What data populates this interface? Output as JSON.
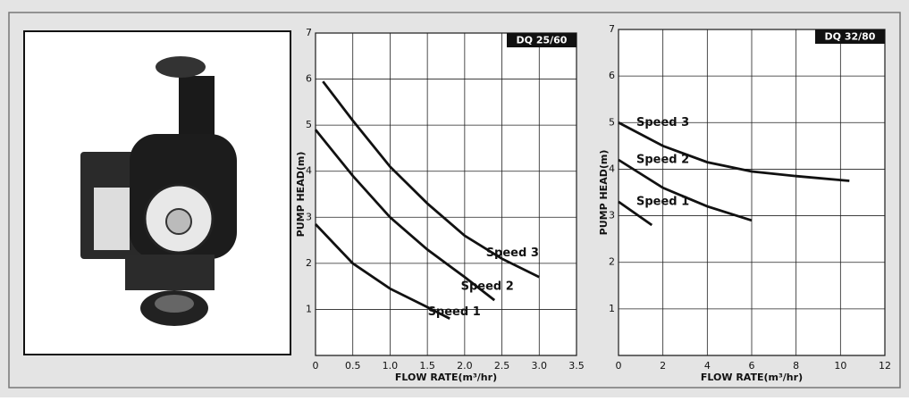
{
  "chart_data": [
    {
      "type": "line",
      "title": "DQ 25/60",
      "x_label": "FLOW RATE(m³/hr)",
      "y_label": "PUMP HEAD(m)",
      "xlim": [
        0,
        3.5
      ],
      "ylim": [
        0,
        7
      ],
      "xticks": [
        0,
        0.5,
        {
          "value": 1,
          "label": "1.0"
        },
        1.5,
        {
          "value": 2,
          "label": "2.0"
        },
        2.5,
        {
          "value": 3,
          "label": "3.0"
        },
        3.5
      ],
      "yticks": [
        1,
        2,
        3,
        4,
        5,
        6,
        7
      ],
      "grid": true,
      "series": [
        {
          "name": "Speed 3",
          "color": "#111111",
          "x": [
            0.1,
            0.5,
            1.0,
            1.5,
            2.0,
            2.5,
            3.0
          ],
          "values": [
            5.95,
            5.1,
            4.1,
            3.3,
            2.6,
            2.1,
            1.7
          ]
        },
        {
          "name": "Speed 2",
          "color": "#111111",
          "x": [
            0,
            0.5,
            1.0,
            1.5,
            2.0,
            2.4
          ],
          "values": [
            4.9,
            3.9,
            3.0,
            2.3,
            1.7,
            1.2
          ]
        },
        {
          "name": "Speed 1",
          "color": "#111111",
          "x": [
            0,
            0.5,
            1.0,
            1.5,
            1.8
          ],
          "values": [
            2.85,
            2.0,
            1.45,
            1.05,
            0.8
          ]
        }
      ]
    },
    {
      "type": "line",
      "title": "DQ 32/80",
      "x_label": "FLOW RATE(m³/hr)",
      "y_label": "PUMP HEAD(m)",
      "xlim": [
        0,
        12
      ],
      "ylim": [
        0,
        7
      ],
      "xticks": [
        0,
        2,
        4,
        6,
        8,
        10,
        12
      ],
      "yticks": [
        1,
        2,
        3,
        4,
        5,
        6,
        7
      ],
      "grid": true,
      "series": [
        {
          "name": "Speed 3",
          "color": "#111111",
          "x": [
            0,
            2,
            4,
            6,
            8,
            10.4
          ],
          "values": [
            5.0,
            4.5,
            4.15,
            3.95,
            3.85,
            3.75
          ]
        },
        {
          "name": "Speed 2",
          "color": "#111111",
          "x": [
            0,
            2,
            4,
            6
          ],
          "values": [
            4.2,
            3.6,
            3.2,
            2.9
          ]
        },
        {
          "name": "Speed 1",
          "color": "#111111",
          "x": [
            0,
            1.5
          ],
          "values": [
            3.3,
            2.8
          ]
        }
      ]
    }
  ]
}
